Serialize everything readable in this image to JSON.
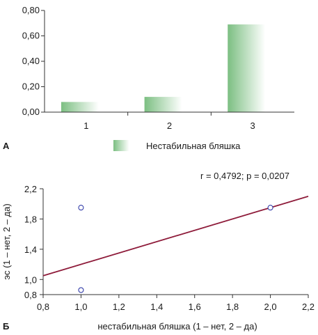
{
  "chart_data": [
    {
      "type": "bar",
      "panel_label": "А",
      "categories": [
        "1",
        "2",
        "3"
      ],
      "series": [
        {
          "name": "Нестабильная бляшка",
          "values": [
            0.08,
            0.12,
            0.69
          ]
        }
      ],
      "ylim": [
        0,
        0.8
      ],
      "yticks": [
        "0,00",
        "0,20",
        "0,40",
        "0,60",
        "0,80"
      ],
      "ytick_values": [
        0,
        0.2,
        0.4,
        0.6,
        0.8
      ],
      "legend": "bottom-center",
      "grid": false
    },
    {
      "type": "scatter",
      "panel_label": "Б",
      "annotation": "r = 0,4792; p = 0,0207",
      "xlabel": "нестабильная бляшка (1 – нет, 2 – да)",
      "ylabel": "эс (1 – нет, 2 – да)",
      "xlim": [
        0.8,
        2.2
      ],
      "ylim": [
        0.8,
        2.2
      ],
      "xticks": [
        "0,8",
        "1,0",
        "1,2",
        "1,4",
        "1,6",
        "1,8",
        "2,0",
        "2,2"
      ],
      "xtick_values": [
        0.8,
        1.0,
        1.2,
        1.4,
        1.6,
        1.8,
        2.0,
        2.2
      ],
      "yticks": [
        "0,8",
        "1,0",
        "1,4",
        "1,8",
        "2,2"
      ],
      "ytick_values": [
        0.8,
        1.0,
        1.4,
        1.8,
        2.2
      ],
      "points": [
        {
          "x": 1.0,
          "y": 1.95
        },
        {
          "x": 1.0,
          "y": 0.86
        },
        {
          "x": 2.0,
          "y": 1.95
        }
      ],
      "trendline": {
        "x": [
          0.8,
          2.2
        ],
        "y": [
          1.05,
          2.1
        ]
      },
      "grid": false
    }
  ],
  "colors": {
    "bar_dark": "#7cbf82",
    "bar_light": "#ffffff",
    "trendline": "#8e1b3a",
    "marker": "#1f2aa0",
    "axis": "#333333"
  }
}
